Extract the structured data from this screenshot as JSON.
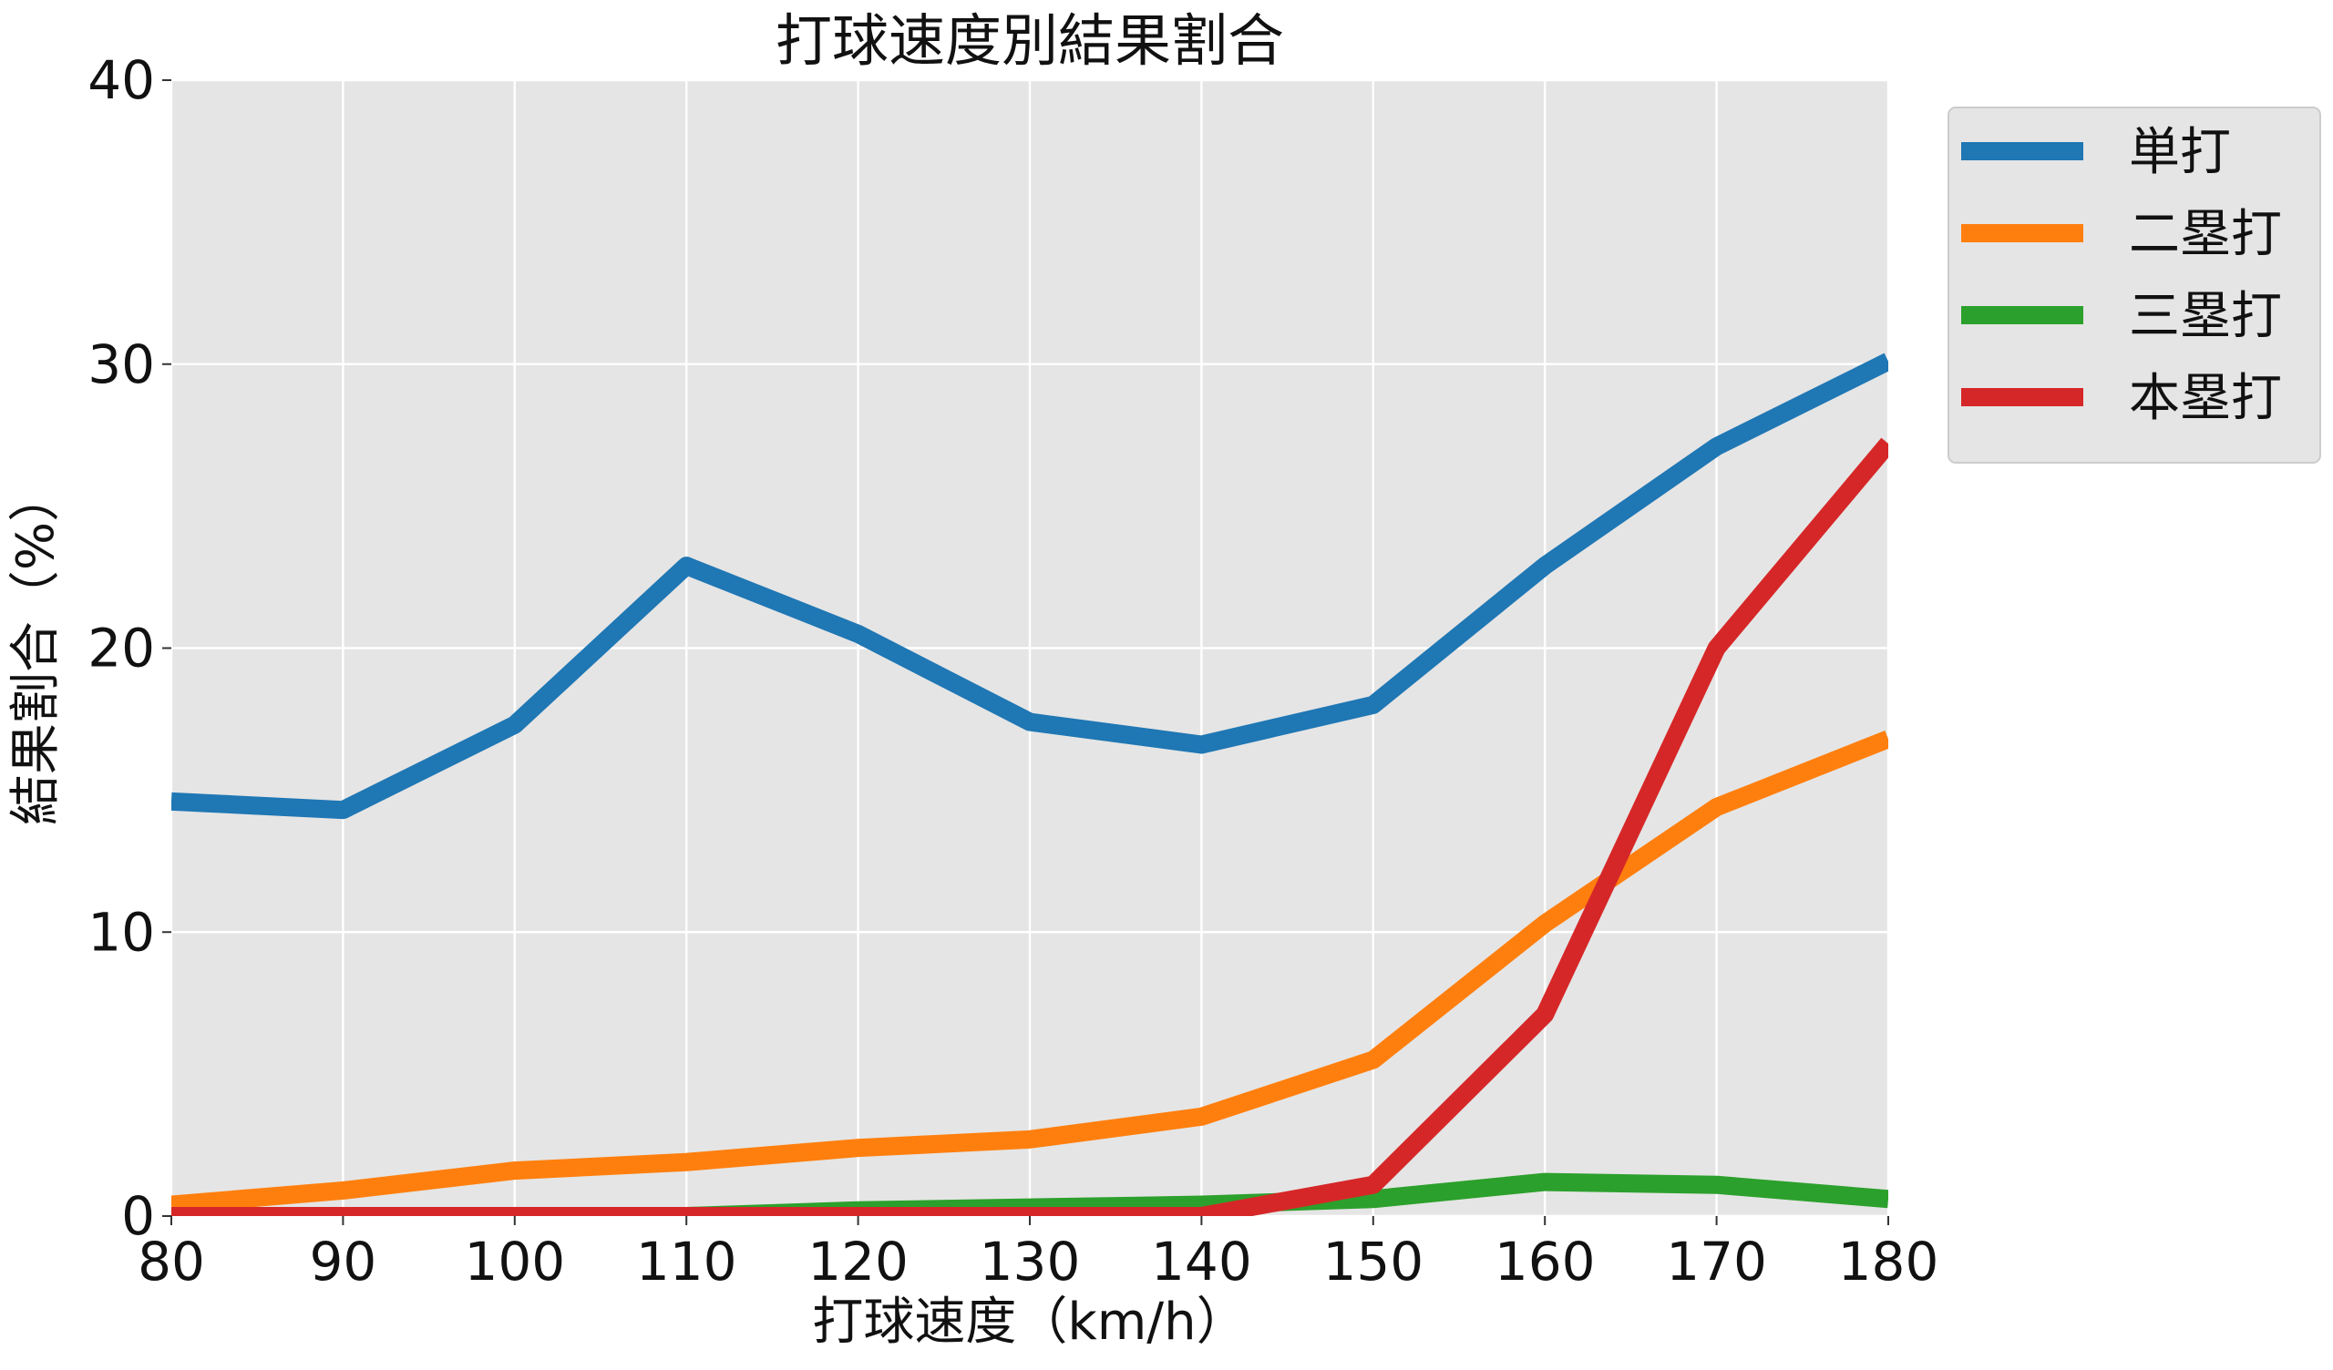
{
  "chart_data": {
    "type": "line",
    "title": "打球速度別結果割合",
    "xlabel": "打球速度（km/h）",
    "ylabel": "結果割合（%）",
    "x": [
      80,
      90,
      100,
      110,
      120,
      130,
      140,
      150,
      160,
      170,
      180
    ],
    "xlim": [
      80,
      180
    ],
    "ylim": [
      0,
      40
    ],
    "xticks": [
      "80",
      "90",
      "100",
      "110",
      "120",
      "130",
      "140",
      "150",
      "160",
      "170",
      "180"
    ],
    "yticks": [
      "0",
      "10",
      "20",
      "30",
      "40"
    ],
    "grid": true,
    "legend_position": "outside-top-right",
    "background": "#e5e5e5",
    "series": [
      {
        "name": "単打",
        "color": "#1f77b4",
        "values": [
          14.6,
          14.3,
          17.3,
          22.9,
          20.5,
          17.4,
          16.6,
          18.0,
          22.9,
          27.1,
          30.1
        ]
      },
      {
        "name": "二塁打",
        "color": "#ff7f0e",
        "values": [
          0.4,
          0.9,
          1.6,
          1.9,
          2.4,
          2.7,
          3.5,
          5.5,
          10.3,
          14.4,
          16.8
        ]
      },
      {
        "name": "三塁打",
        "color": "#2ca02c",
        "values": [
          0.0,
          0.0,
          0.0,
          0.0,
          0.2,
          0.3,
          0.4,
          0.6,
          1.2,
          1.1,
          0.6
        ]
      },
      {
        "name": "本塁打",
        "color": "#d62728",
        "values": [
          0.0,
          0.0,
          0.0,
          0.0,
          0.0,
          0.0,
          0.0,
          1.1,
          7.1,
          20.0,
          27.2
        ]
      }
    ]
  }
}
